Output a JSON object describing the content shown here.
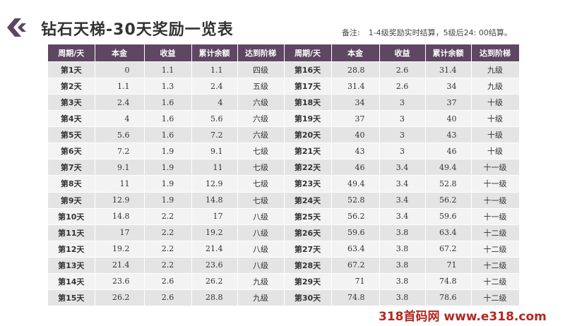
{
  "title": "钻石天梯-30天奖励一览表",
  "note": {
    "label": "备注:",
    "text": "1-4级奖励实时结算，5级后24: 00结算。"
  },
  "headers": [
    "周期/天",
    "本金",
    "收益",
    "累计余额",
    "达到阶梯",
    "周期/天",
    "本金",
    "收益",
    "累计余额",
    "达到阶梯"
  ],
  "rows": [
    [
      "第1天",
      "0",
      "1.1",
      "1.1",
      "四级",
      "第16天",
      "28.8",
      "2.6",
      "31.4",
      "九级"
    ],
    [
      "第2天",
      "1.1",
      "1.3",
      "2.4",
      "五级",
      "第17天",
      "31.4",
      "2.6",
      "34",
      "九级"
    ],
    [
      "第3天",
      "2.4",
      "1.6",
      "4",
      "六级",
      "第18天",
      "34",
      "3",
      "37",
      "十级"
    ],
    [
      "第4天",
      "4",
      "1.6",
      "5.6",
      "六级",
      "第19天",
      "37",
      "3",
      "40",
      "十级"
    ],
    [
      "第5天",
      "5.6",
      "1.6",
      "7.2",
      "六级",
      "第20天",
      "40",
      "3",
      "43",
      "十级"
    ],
    [
      "第6天",
      "7.2",
      "1.9",
      "9.1",
      "七级",
      "第21天",
      "43",
      "3",
      "46",
      "十级"
    ],
    [
      "第7天",
      "9.1",
      "1.9",
      "11",
      "七级",
      "第22天",
      "46",
      "3.4",
      "49.4",
      "十一级"
    ],
    [
      "第8天",
      "11",
      "1.9",
      "12.9",
      "七级",
      "第23天",
      "49.4",
      "3.4",
      "52.8",
      "十一级"
    ],
    [
      "第9天",
      "12.9",
      "1.9",
      "14.8",
      "七级",
      "第24天",
      "52.8",
      "3.4",
      "56.2",
      "十一级"
    ],
    [
      "第10天",
      "14.8",
      "2.2",
      "17",
      "八级",
      "第25天",
      "56.2",
      "3.4",
      "59.6",
      "十一级"
    ],
    [
      "第11天",
      "17",
      "2.2",
      "19.2",
      "八级",
      "第26天",
      "59.6",
      "3.8",
      "63.4",
      "十二级"
    ],
    [
      "第12天",
      "19.2",
      "2.2",
      "21.4",
      "八级",
      "第27天",
      "63.4",
      "3.8",
      "67.2",
      "十二级"
    ],
    [
      "第13天",
      "21.4",
      "2.2",
      "23.6",
      "八级",
      "第28天",
      "67.2",
      "3.8",
      "71",
      "十二级"
    ],
    [
      "第14天",
      "23.6",
      "2.6",
      "26.2",
      "九级",
      "第29天",
      "71",
      "3.8",
      "74.8",
      "十二级"
    ],
    [
      "第15天",
      "26.2",
      "2.6",
      "28.8",
      "九级",
      "第30天",
      "74.8",
      "3.8",
      "78.6",
      "十二级"
    ]
  ],
  "watermark": "318首码网 www.e318.com",
  "colors": {
    "header_bg": "#5f4663",
    "logo": "#5b4560",
    "row_odd": "#e4e4e4",
    "row_even": "#f3f3f3",
    "watermark": "#b4271e"
  },
  "icons": {
    "logo": "diamond-chevron-logo-icon"
  }
}
